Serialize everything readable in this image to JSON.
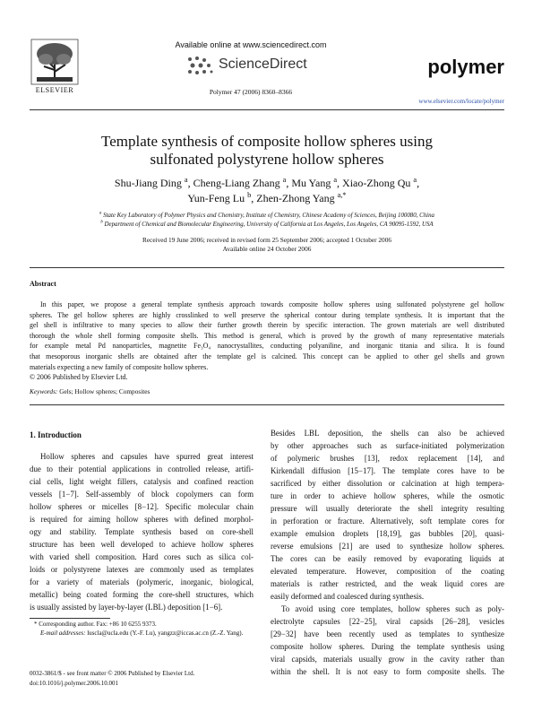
{
  "header": {
    "publisher": "ELSEVIER",
    "available_online": "Available online at www.sciencedirect.com",
    "sciencedirect": "ScienceDirect",
    "citation": "Polymer 47 (2006) 8360–8366",
    "journal": "polymer",
    "url": "www.elsevier.com/locate/polymer"
  },
  "article": {
    "title_lines": [
      "Template synthesis of composite hollow spheres using",
      "sulfonated polystyrene hollow spheres"
    ],
    "author_lines": [
      [
        {
          "name": "Shu-Jiang Ding",
          "sup": "a",
          "sep": ","
        },
        {
          "name": "Cheng-Liang Zhang",
          "sup": "a",
          "sep": ","
        },
        {
          "name": "Mu Yang",
          "sup": "a",
          "sep": ","
        },
        {
          "name": "Xiao-Zhong Qu",
          "sup": "a",
          "sep": ","
        }
      ],
      [
        {
          "name": "Yun-Feng Lu",
          "sup": "b",
          "sep": ","
        },
        {
          "name": "Zhen-Zhong Yang",
          "sup": "a,*"
        }
      ]
    ],
    "affiliations": [
      {
        "label": "a",
        "text": "State Key Laboratory of Polymer Physics and Chemistry, Institute of Chemistry, Chinese Academy of Sciences, Beijing 100080, China"
      },
      {
        "label": "b",
        "text": "Department of Chemical and Biomolecular Engineering, University of California at Los Angeles, Los Angeles, CA 90095-1592, USA"
      }
    ],
    "received": "Received 19 June 2006; received in revised form 25 September 2006; accepted 1 October 2006",
    "available": "Available online 24 October 2006"
  },
  "abstract": {
    "heading": "Abstract",
    "lines": [
      "In this paper, we propose a general template synthesis approach towards composite hollow spheres using sulfonated polystyrene gel hollow",
      "spheres. The gel hollow spheres are highly crosslinked to well preserve the spherical contour during template synthesis. It is important that the",
      "gel shell is infiltrative to many species to allow their further growth therein by specific interaction. The grown materials are well distributed",
      "thorough the whole shell forming composite shells. This method is general, which is proved by the growth of many representative materials",
      "for example metal Pd nanoparticles, magnetite Fe₃O₄ nanocrystallites, conducting polyaniline, and inorganic titania and silica. It is found",
      "that mesoporous inorganic shells are obtained after the template gel is calcined. This concept can be applied to other gel shells and grown",
      "materials expecting a new family of composite hollow spheres."
    ],
    "copyright": "© 2006 Published by Elsevier Ltd."
  },
  "keywords": {
    "label": "Keywords:",
    "text": "Gels; Hollow spheres; Composites"
  },
  "body": {
    "left": {
      "heading": "1. Introduction",
      "paragraphs": [
        [
          "Hollow spheres and capsules have spurred great interest",
          "due to their potential applications in controlled release, artifi-",
          "cial cells, light weight fillers, catalysis and confined reaction",
          "vessels [1−7]. Self-assembly of block copolymers can form",
          "hollow spheres or micelles [8−12]. Specific molecular chain",
          "is required for aiming hollow spheres with defined morphol-",
          "ogy and stability. Template synthesis based on core-shell",
          "structure has been well developed to achieve hollow spheres",
          "with varied shell composition. Hard cores such as silica col-",
          "loids or polystyrene latexes are commonly used as templates",
          "for a variety of materials (polymeric, inorganic, biological,",
          "metallic) being coated forming the core-shell structures, which",
          "is usually assisted by layer-by-layer (LBL) deposition [1−6]."
        ]
      ]
    },
    "right": {
      "paragraphs": [
        [
          "Besides LBL deposition, the shells can also be achieved",
          "by other approaches such as surface-initiated polymerization",
          "of polymeric brushes [13], redox replacement [14], and",
          "Kirkendall diffusion [15−17]. The template cores have to be",
          "sacrificed by either dissolution or calcination at high tempera-",
          "ture in order to achieve hollow spheres, while the osmotic",
          "pressure will usually deteriorate the shell integrity resulting",
          "in perforation or fracture. Alternatively, soft template cores for",
          "example emulsion droplets [18,19], gas bubbles [20], quasi-",
          "reverse emulsions [21] are used to synthesize hollow spheres.",
          "The cores can be easily removed by evaporating liquids at",
          "elevated temperature. However, composition of the coating",
          "materials is rather restricted, and the weak liquid cores are",
          "easily deformed and coalesced during synthesis."
        ],
        [
          "To avoid using core templates, hollow spheres such as poly-",
          "electrolyte capsules [22−25], viral capsids [26−28], vesicles",
          "[29−32] have been recently used as templates to synthesize",
          "composite hollow spheres. During the template synthesis using",
          "viral capsids, materials usually grow in the cavity rather than",
          "within the shell. It is not easy to form composite shells. The"
        ]
      ]
    }
  },
  "footnotes": {
    "corresponding": "* Corresponding author. Fax: +86 10 6255 9373.",
    "email_label": "E-mail addresses:",
    "email_text": "luscla@ucla.edu (Y.-F. Lu), yangzz@iccas.ac.cn (Z.-Z. Yang)."
  },
  "footer": {
    "lines": [
      "0032-3861/$ - see front matter © 2006 Published by Elsevier Ltd.",
      "doi:10.1016/j.polymer.2006.10.001"
    ]
  }
}
